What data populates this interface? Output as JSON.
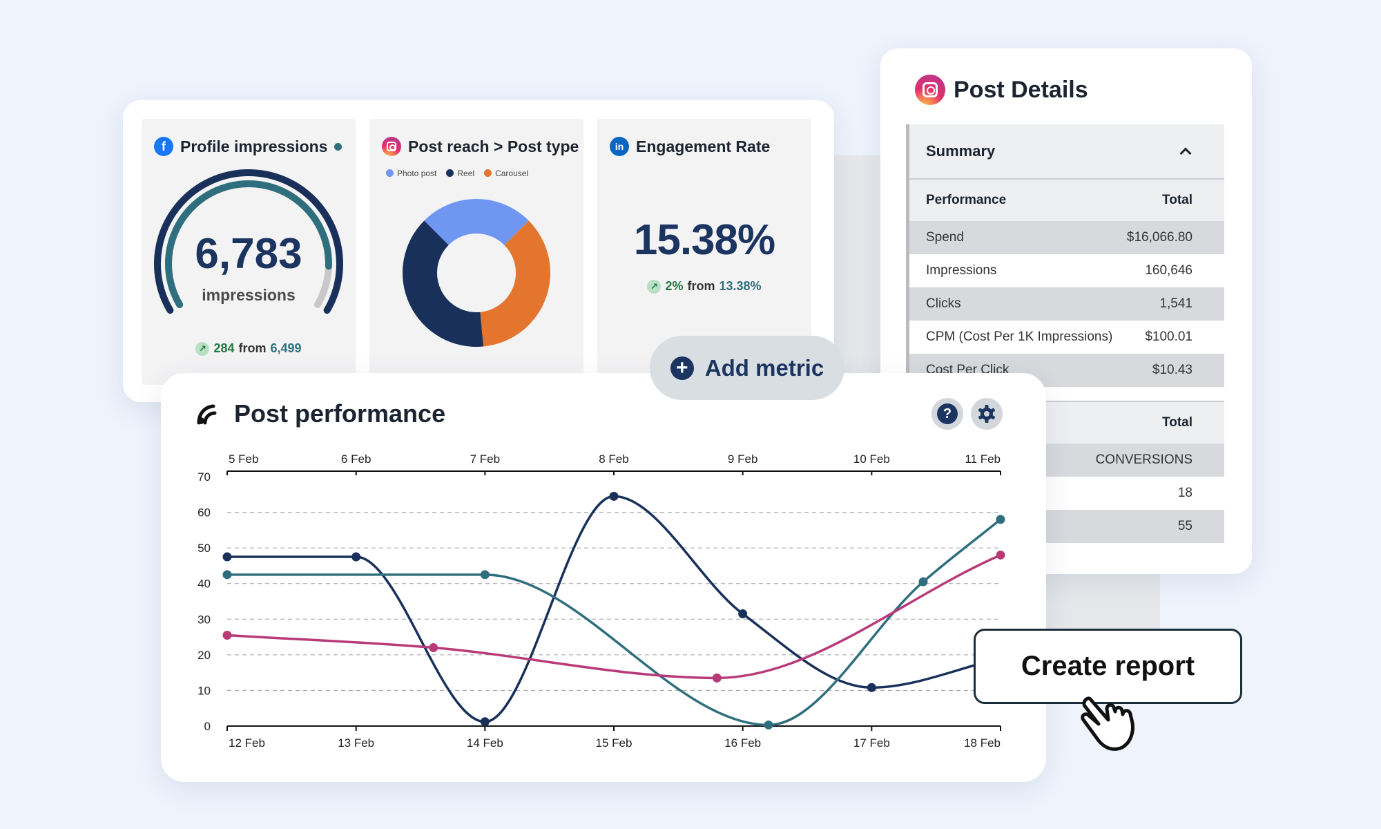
{
  "metrics": {
    "profile": {
      "title": "Profile impressions",
      "value": "6,783",
      "unit": "impressions",
      "delta": "284",
      "from_label": "from",
      "from_value": "6,499",
      "gauge_fraction": 0.88
    },
    "post_reach": {
      "title": "Post reach > Post type",
      "legend": [
        {
          "label": "Photo post",
          "color": "#6f97f2"
        },
        {
          "label": "Reel",
          "color": "#18305a"
        },
        {
          "label": "Carousel",
          "color": "#e4752e"
        }
      ],
      "slices": [
        {
          "label": "Photo post",
          "value": 25
        },
        {
          "label": "Carousel",
          "value": 36
        },
        {
          "label": "Reel",
          "value": 39
        }
      ]
    },
    "engagement": {
      "title": "Engagement Rate",
      "value": "15.38%",
      "delta": "2%",
      "from_label": "from",
      "from_value": "13.38%"
    }
  },
  "add_metric": {
    "label": "Add metric"
  },
  "details": {
    "title": "Post Details",
    "summary_label": "Summary",
    "header": {
      "left": "Performance",
      "right": "Total"
    },
    "rows": [
      {
        "label": "Spend",
        "value": "$16,066.80"
      },
      {
        "label": "Impressions",
        "value": "160,646"
      },
      {
        "label": "Clicks",
        "value": "1,541"
      },
      {
        "label": "CPM (Cost Per 1K Impressions)",
        "value": "$100.01"
      },
      {
        "label": "Cost Per Click",
        "value": "$10.43"
      }
    ],
    "header2": {
      "right": "Total"
    },
    "rows2": [
      {
        "value": "CONVERSIONS"
      },
      {
        "value": "18"
      },
      {
        "value": "55"
      }
    ]
  },
  "performance": {
    "title": "Post performance",
    "help_icon": "question-icon",
    "settings_icon": "gear-icon"
  },
  "create_report": {
    "label": "Create report"
  },
  "chart_data": {
    "type": "line",
    "title": "Post performance",
    "y_ticks": [
      0,
      10,
      20,
      30,
      40,
      50,
      60,
      70
    ],
    "ylim": [
      0,
      70
    ],
    "x_top_labels": [
      "5 Feb",
      "6 Feb",
      "7 Feb",
      "8 Feb",
      "9 Feb",
      "10 Feb",
      "11 Feb"
    ],
    "x_bottom_labels": [
      "12 Feb",
      "13 Feb",
      "14 Feb",
      "15 Feb",
      "16 Feb",
      "17 Feb",
      "18 Feb"
    ],
    "grid": true,
    "series": [
      {
        "color": "#18305a",
        "points": [
          [
            0,
            47.5
          ],
          [
            1,
            47.5
          ],
          [
            2,
            1.2
          ],
          [
            3,
            64.5
          ],
          [
            4,
            31.5
          ],
          [
            5,
            10.8
          ],
          [
            6,
            19
          ]
        ]
      },
      {
        "color": "#2f6f7d",
        "points": [
          [
            0,
            42.5
          ],
          [
            2,
            42.5
          ],
          [
            4.2,
            0.3
          ],
          [
            5.4,
            40.5
          ],
          [
            6,
            58
          ]
        ]
      },
      {
        "color": "#b83a78",
        "points": [
          [
            0,
            25.5
          ],
          [
            1.6,
            22
          ],
          [
            3.8,
            13.5
          ],
          [
            6,
            48
          ]
        ]
      }
    ]
  }
}
